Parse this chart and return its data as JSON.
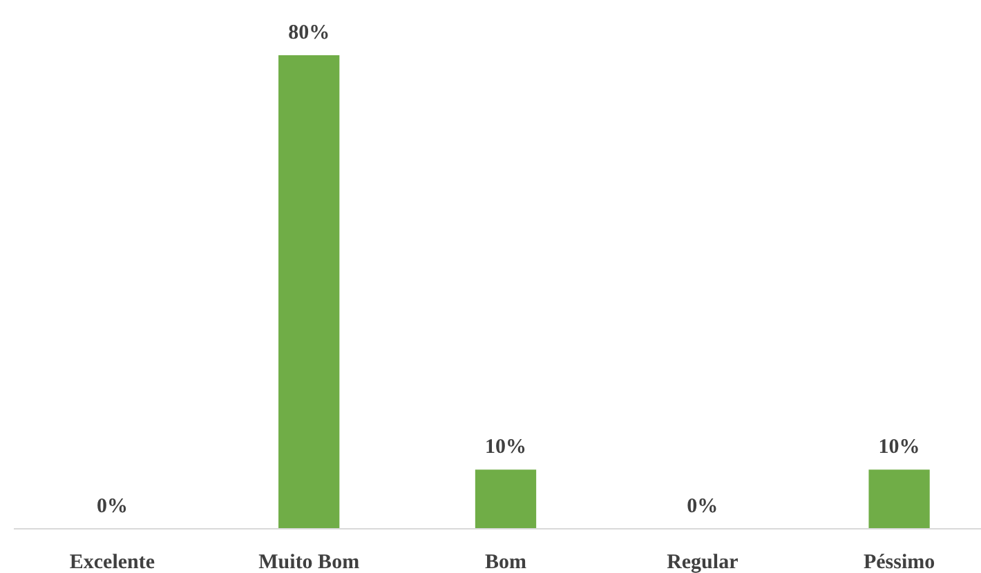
{
  "chart_data": {
    "type": "bar",
    "categories": [
      "Excelente",
      "Muito Bom",
      "Bom",
      "Regular",
      "Péssimo"
    ],
    "values": [
      0,
      80,
      10,
      0,
      10
    ],
    "value_labels": [
      "0%",
      "80%",
      "10%",
      "0%",
      "10%"
    ],
    "color": "#70ad47"
  }
}
